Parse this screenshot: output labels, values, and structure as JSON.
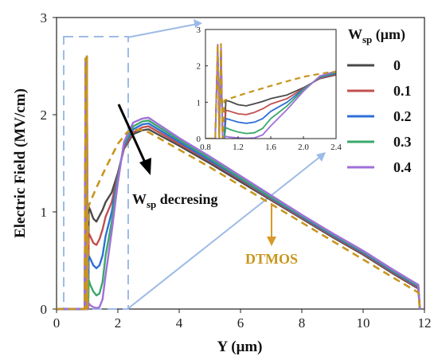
{
  "chart_data": [
    {
      "type": "line",
      "xlabel": "Y (μm)",
      "ylabel": "Electric Field (MV/cm)",
      "xlim": [
        0,
        12
      ],
      "ylim": [
        0,
        3
      ],
      "xticks": [
        "0",
        "2",
        "4",
        "6",
        "8",
        "10",
        "12"
      ],
      "yticks": [
        "0",
        "1",
        "2",
        "3"
      ],
      "grid": false,
      "legend": {
        "title": "Wsp (μm)",
        "title_main": "W",
        "title_sub": "sp",
        "title_unit": " (μm)",
        "placement": "right"
      },
      "series": [
        {
          "name": "0",
          "color": "#4a4a4a",
          "style": "solid",
          "x": [
            0,
            0.92,
            0.95,
            0.97,
            0.99,
            1.01,
            1.03,
            1.05,
            1.1,
            1.2,
            1.3,
            1.4,
            1.5,
            1.6,
            1.8,
            2.0,
            2.2,
            2.5,
            2.8,
            3.0,
            4,
            5,
            6,
            7,
            8,
            9,
            10,
            11,
            11.8,
            11.85
          ],
          "y": [
            0,
            0,
            2.58,
            0,
            2.6,
            0,
            0,
            1.05,
            1.02,
            0.93,
            0.9,
            0.96,
            1.02,
            1.1,
            1.2,
            1.4,
            1.65,
            1.8,
            1.84,
            1.85,
            1.68,
            1.5,
            1.31,
            1.12,
            0.93,
            0.74,
            0.56,
            0.36,
            0.21,
            0
          ]
        },
        {
          "name": "0.1",
          "color": "#c0504d",
          "style": "solid",
          "x": [
            0,
            0.92,
            0.95,
            0.97,
            0.99,
            1.01,
            1.03,
            1.05,
            1.1,
            1.2,
            1.3,
            1.4,
            1.5,
            1.6,
            1.8,
            2.0,
            2.2,
            2.5,
            2.8,
            3.0,
            4,
            5,
            6,
            7,
            8,
            9,
            10,
            11,
            11.8,
            11.85
          ],
          "y": [
            0,
            0,
            2.58,
            0,
            2.6,
            0,
            0,
            0.78,
            0.75,
            0.68,
            0.66,
            0.72,
            0.82,
            0.95,
            1.1,
            1.38,
            1.66,
            1.82,
            1.87,
            1.88,
            1.7,
            1.52,
            1.33,
            1.13,
            0.94,
            0.75,
            0.57,
            0.37,
            0.22,
            0
          ]
        },
        {
          "name": "0.2",
          "color": "#2e6fd6",
          "style": "solid",
          "x": [
            0,
            0.92,
            0.95,
            0.97,
            0.99,
            1.01,
            1.03,
            1.05,
            1.1,
            1.2,
            1.3,
            1.4,
            1.5,
            1.6,
            1.8,
            2.0,
            2.2,
            2.5,
            2.8,
            3.0,
            4,
            5,
            6,
            7,
            8,
            9,
            10,
            11,
            11.8,
            11.85
          ],
          "y": [
            0,
            0,
            2.58,
            0,
            2.6,
            0,
            0,
            0.55,
            0.52,
            0.45,
            0.42,
            0.45,
            0.55,
            0.75,
            1.0,
            1.36,
            1.68,
            1.85,
            1.9,
            1.91,
            1.72,
            1.53,
            1.34,
            1.14,
            0.95,
            0.76,
            0.58,
            0.38,
            0.23,
            0
          ]
        },
        {
          "name": "0.3",
          "color": "#3aa86b",
          "style": "solid",
          "x": [
            0,
            0.92,
            0.95,
            0.97,
            0.99,
            1.01,
            1.03,
            1.05,
            1.1,
            1.2,
            1.3,
            1.4,
            1.5,
            1.6,
            1.8,
            2.0,
            2.2,
            2.5,
            2.8,
            3.0,
            4,
            5,
            6,
            7,
            8,
            9,
            10,
            11,
            11.8,
            11.85
          ],
          "y": [
            0,
            0,
            2.58,
            0,
            2.6,
            0,
            0,
            0.3,
            0.25,
            0.18,
            0.14,
            0.16,
            0.28,
            0.55,
            0.9,
            1.34,
            1.7,
            1.88,
            1.93,
            1.94,
            1.74,
            1.55,
            1.35,
            1.15,
            0.96,
            0.77,
            0.59,
            0.39,
            0.24,
            0
          ]
        },
        {
          "name": "0.4",
          "color": "#a070d8",
          "style": "solid",
          "x": [
            0,
            0.92,
            0.95,
            0.97,
            0.99,
            1.01,
            1.03,
            1.05,
            1.1,
            1.2,
            1.3,
            1.4,
            1.5,
            1.6,
            1.8,
            2.0,
            2.2,
            2.5,
            2.8,
            3.0,
            4,
            5,
            6,
            7,
            8,
            9,
            10,
            11,
            11.8,
            11.85
          ],
          "y": [
            0,
            0,
            2.58,
            0,
            2.6,
            0,
            0,
            0.06,
            0.04,
            0.02,
            0.01,
            0.02,
            0.1,
            0.35,
            0.8,
            1.3,
            1.72,
            1.92,
            1.96,
            1.97,
            1.76,
            1.57,
            1.37,
            1.17,
            0.97,
            0.78,
            0.6,
            0.4,
            0.25,
            0
          ]
        },
        {
          "name": "DTMOS",
          "color": "#c8961e",
          "style": "dashed",
          "x": [
            0,
            0.92,
            0.95,
            0.97,
            0.99,
            1.01,
            1.03,
            1.3,
            1.6,
            2.0,
            2.3,
            2.5,
            2.8,
            3.0,
            4,
            5,
            6,
            7,
            8,
            9,
            10,
            11,
            11.8,
            11.85
          ],
          "y": [
            0,
            0,
            2.58,
            0,
            2.6,
            0,
            1.05,
            1.25,
            1.45,
            1.7,
            1.82,
            1.85,
            1.84,
            1.82,
            1.64,
            1.46,
            1.27,
            1.08,
            0.89,
            0.7,
            0.51,
            0.32,
            0.17,
            0
          ]
        }
      ],
      "annotations": [
        {
          "text_main": "W",
          "text_sub": "sp",
          "text_rest": " decresing",
          "color": "#111111"
        },
        {
          "text": "DTMOS",
          "color": "#c8961e"
        }
      ]
    },
    {
      "type": "line",
      "role": "inset",
      "xlim": [
        0.8,
        2.4
      ],
      "ylim": [
        0,
        3
      ],
      "xticks": [
        "0.8",
        "1.2",
        "1.6",
        "2.0",
        "2.4"
      ],
      "yticks": [
        "0",
        "1",
        "2",
        "3"
      ],
      "grid": false,
      "note": "zoomed view of the same six series for Y between 0.8 and 2.4 μm"
    }
  ],
  "colors": {
    "highlight": "#9dbbe6",
    "arrow_black": "#000000",
    "arrow_dtmos": "#d89a27"
  }
}
